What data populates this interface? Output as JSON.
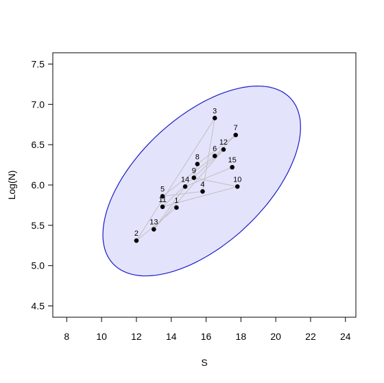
{
  "chart_data": {
    "type": "scatter",
    "title": "",
    "xlabel": "S",
    "ylabel": "Log(N)",
    "xlim": [
      7.2,
      24.6
    ],
    "ylim": [
      4.36,
      7.64
    ],
    "xticks": [
      8,
      10,
      12,
      14,
      16,
      18,
      20,
      22,
      24
    ],
    "yticks": [
      4.5,
      5.0,
      5.5,
      6.0,
      6.5,
      7.0,
      7.5
    ],
    "x_tick_labels": [
      "8",
      "10",
      "12",
      "14",
      "16",
      "18",
      "20",
      "22",
      "24"
    ],
    "y_tick_labels": [
      "4.5",
      "5.0",
      "5.5",
      "6.0",
      "6.5",
      "7.0",
      "7.5"
    ],
    "grid": false,
    "points": [
      {
        "label": "1",
        "x": 14.3,
        "y": 5.72
      },
      {
        "label": "2",
        "x": 12.0,
        "y": 5.31
      },
      {
        "label": "3",
        "x": 16.5,
        "y": 6.83
      },
      {
        "label": "4",
        "x": 15.8,
        "y": 5.92
      },
      {
        "label": "5",
        "x": 13.5,
        "y": 5.86
      },
      {
        "label": "6",
        "x": 16.5,
        "y": 6.36
      },
      {
        "label": "7",
        "x": 17.7,
        "y": 6.62
      },
      {
        "label": "8",
        "x": 15.5,
        "y": 6.26
      },
      {
        "label": "9",
        "x": 15.3,
        "y": 6.09
      },
      {
        "label": "10",
        "x": 17.8,
        "y": 5.98
      },
      {
        "label": "11",
        "x": 13.5,
        "y": 5.73
      },
      {
        "label": "12",
        "x": 17.0,
        "y": 6.44
      },
      {
        "label": "13",
        "x": 13.0,
        "y": 5.45
      },
      {
        "label": "14",
        "x": 14.8,
        "y": 5.98
      },
      {
        "label": "15",
        "x": 17.5,
        "y": 6.22
      }
    ],
    "connecting_path_order": [
      "1",
      "2",
      "3",
      "4",
      "5",
      "6",
      "7",
      "8",
      "9",
      "10",
      "11",
      "12",
      "13",
      "14",
      "15"
    ],
    "ellipse": {
      "type": "confidence-ellipse",
      "center": [
        15.75,
        6.05
      ],
      "fill_color": "#e3e3fc",
      "border_color": "#1a1ac8"
    },
    "colors": {
      "points": "#000000",
      "path": "#c0c0c0"
    }
  }
}
